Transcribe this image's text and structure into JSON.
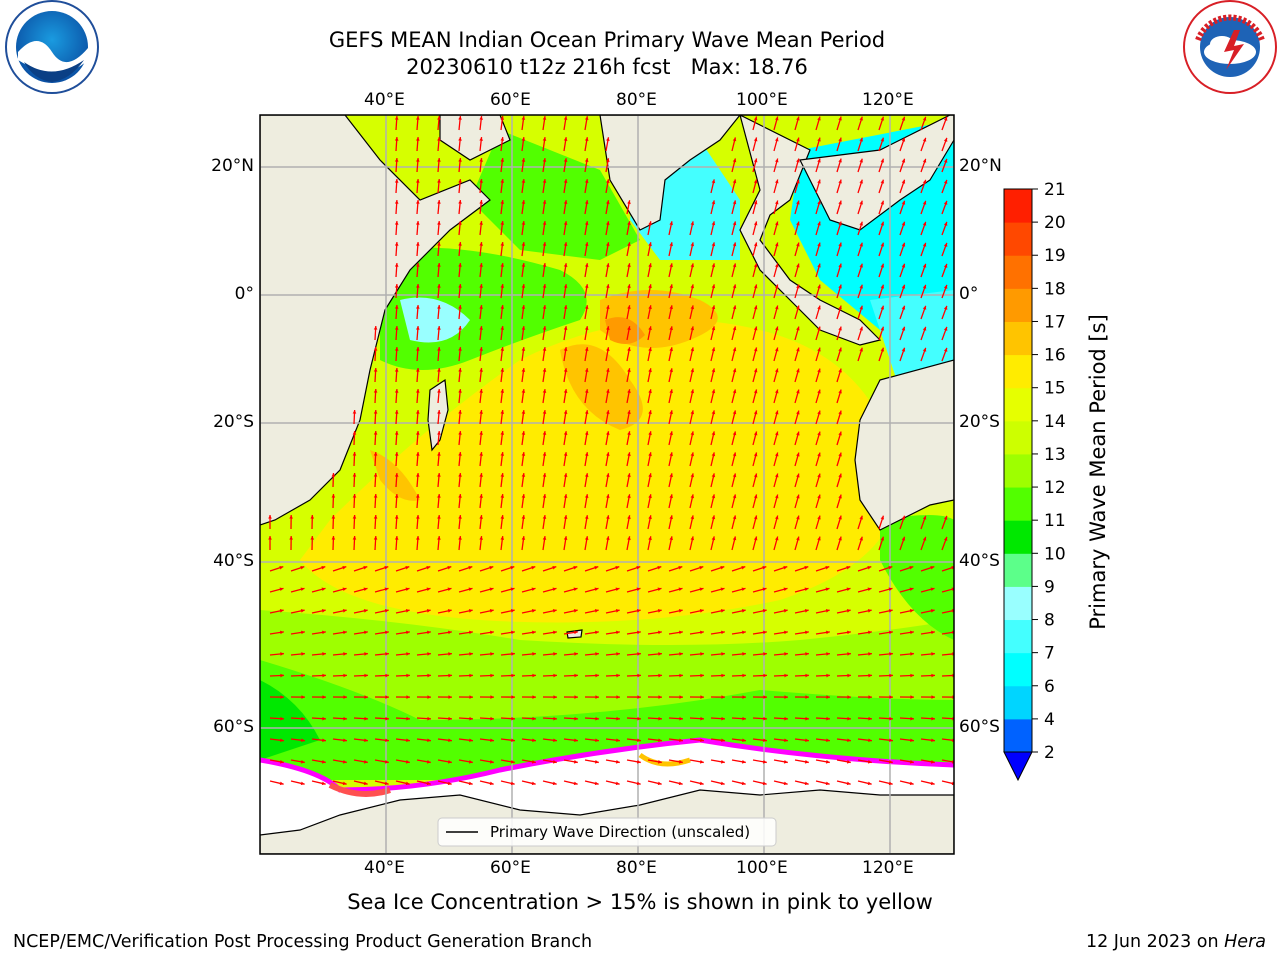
{
  "title": {
    "line1": "GEFS MEAN Indian Ocean Primary Wave Mean Period",
    "line2": "20230610 t12z 216h fcst   Max: 18.76"
  },
  "logos": {
    "left": {
      "icon": "noaa-logo",
      "text": "NOAA",
      "ring_text": "NATIONAL OCEANIC AND ATMOSPHERIC ADMINISTRATION · U.S. DEPARTMENT OF COMMERCE"
    },
    "right": {
      "icon": "nws-logo",
      "ring_text": "NATIONAL WEATHER SERVICE"
    }
  },
  "axes": {
    "lon_ticks": [
      "40°E",
      "60°E",
      "80°E",
      "100°E",
      "120°E"
    ],
    "lat_ticks": [
      "20°N",
      "0°",
      "20°S",
      "40°S",
      "60°S"
    ]
  },
  "legend": {
    "label": "Primary Wave Direction (unscaled)"
  },
  "colorbar": {
    "label": "Primary Wave Mean Period [s]",
    "ticks": [
      "2",
      "4",
      "6",
      "7",
      "8",
      "9",
      "10",
      "11",
      "12",
      "13",
      "14",
      "15",
      "16",
      "17",
      "18",
      "19",
      "20",
      "21"
    ],
    "colors": [
      "#0062ff",
      "#00d5ff",
      "#00ffff",
      "#44ffff",
      "#99ffff",
      "#5cff8a",
      "#00e800",
      "#52ff00",
      "#9eff00",
      "#cdff00",
      "#e6ff00",
      "#ffec00",
      "#ffc400",
      "#ff9a00",
      "#ff7100",
      "#ff4800",
      "#ff1f00"
    ],
    "under_color": "#0000ff"
  },
  "colors": {
    "land": "#eeeddf",
    "arrow": "#ff0000",
    "ice": "#ff00ff",
    "grid": "#b0b0b0"
  },
  "caption": "Sea Ice Concentration > 15% is shown in pink to yellow",
  "footer": {
    "left": "NCEP/EMC/Verification Post Processing Product Generation Branch",
    "right_prefix": "12 Jun 2023 on ",
    "right_italic": "Hera"
  }
}
